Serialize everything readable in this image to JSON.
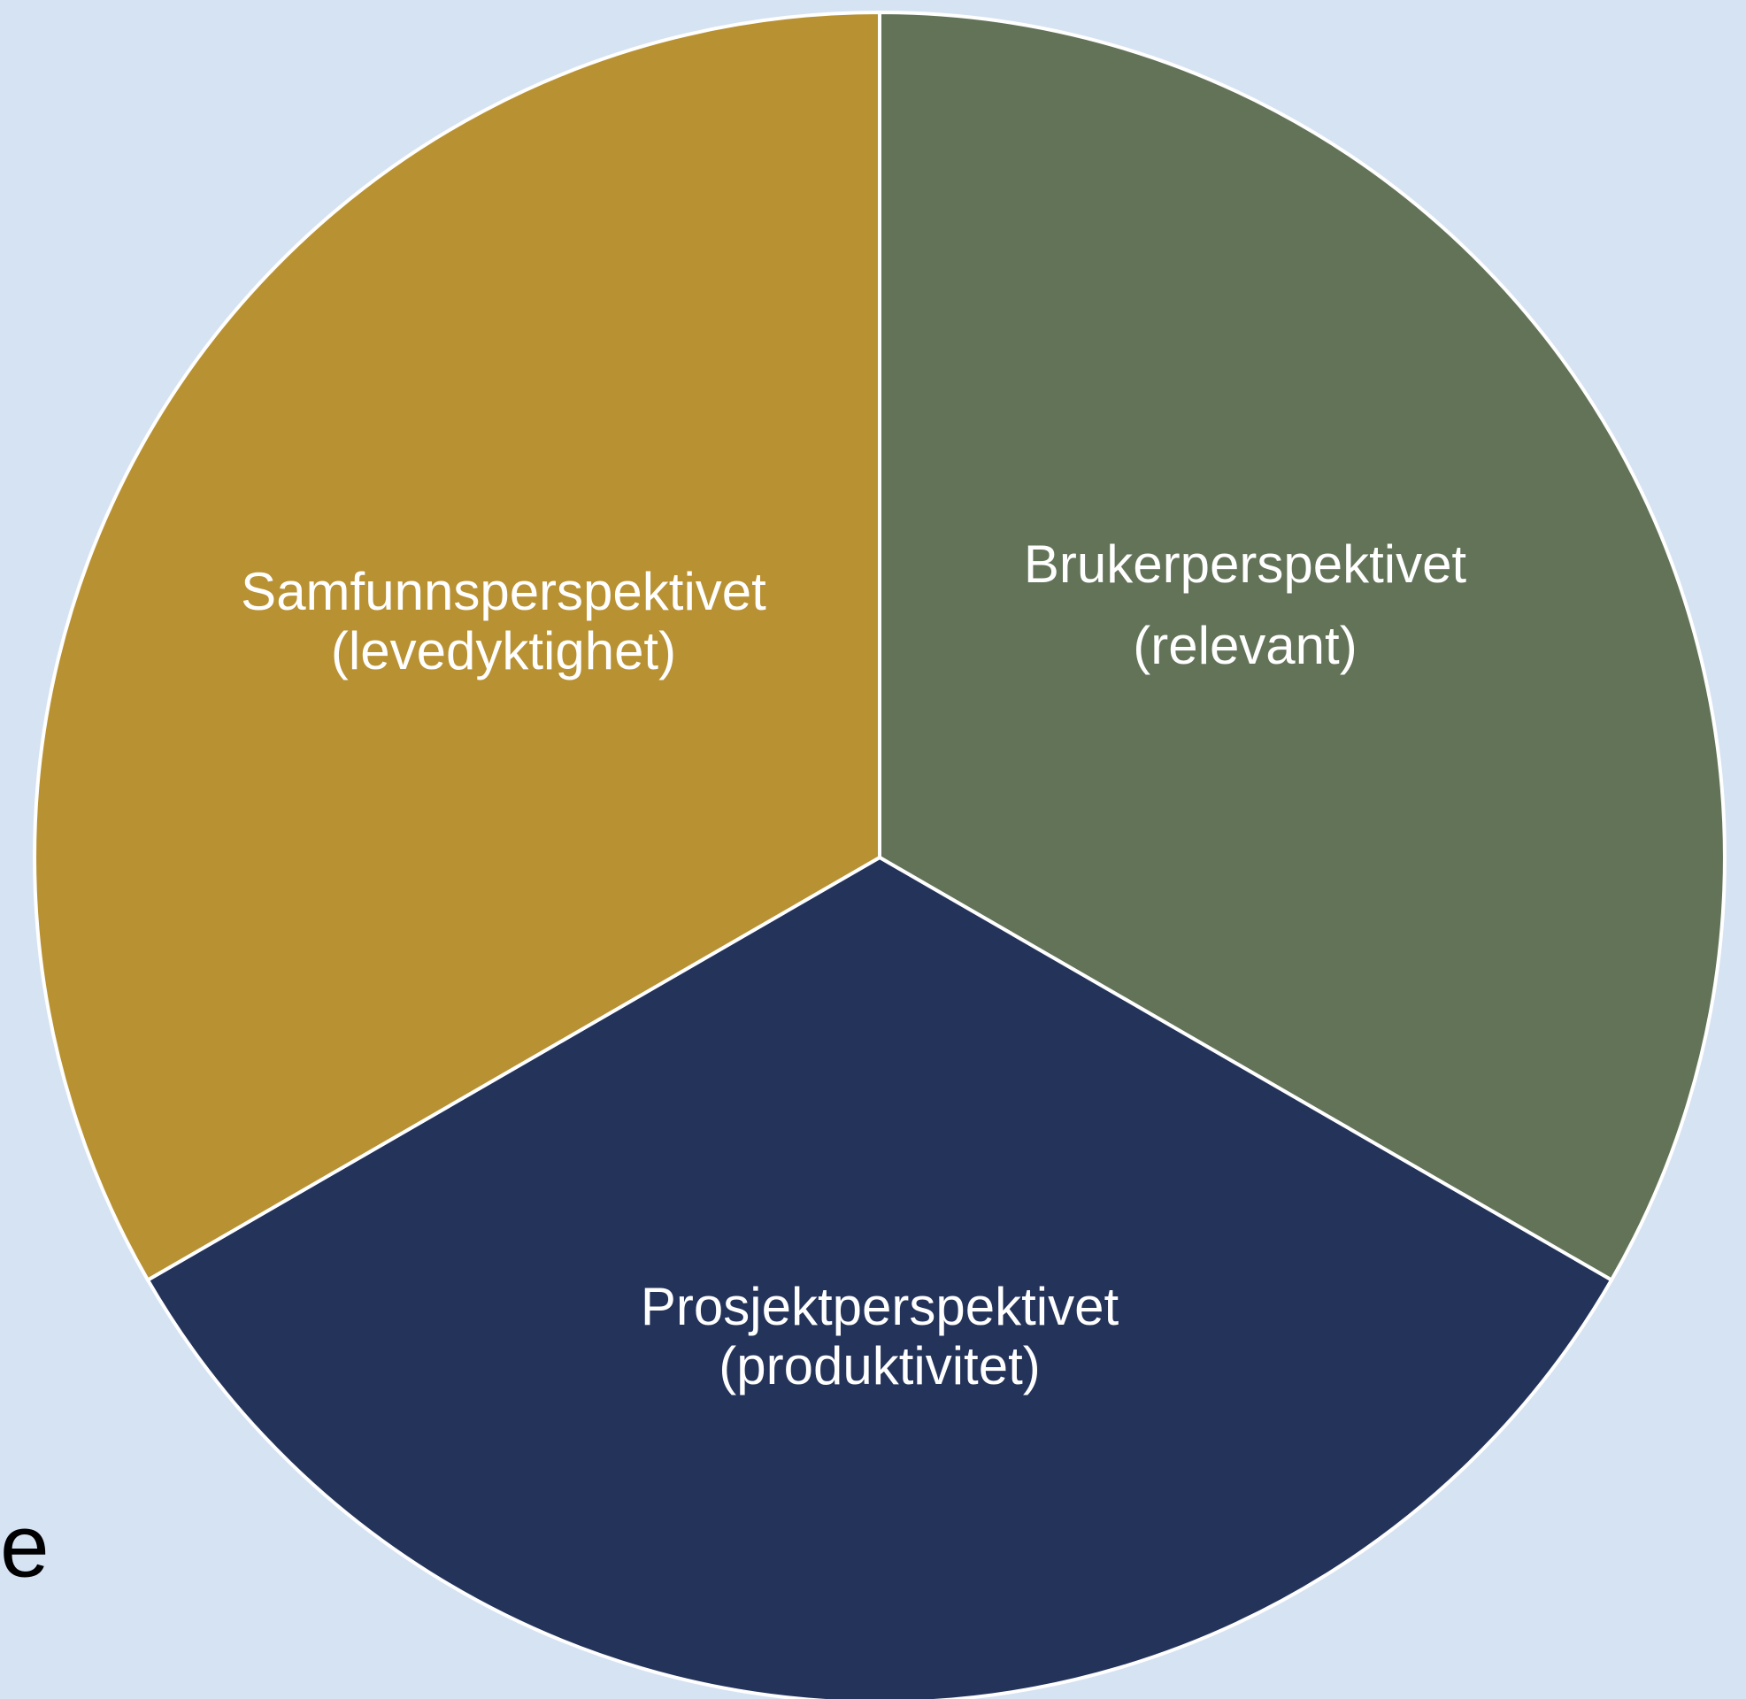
{
  "segments": [
    {
      "label_lines": [
        "Brukerperspektivet",
        "(relevant)"
      ]
    },
    {
      "label_lines": [
        "Prosjektperspektivet",
        "(produktivitet)"
      ]
    },
    {
      "label_lines": [
        "Samfunnsperspektivet",
        "(levedyktighet)"
      ]
    }
  ],
  "stray_text": "e"
}
